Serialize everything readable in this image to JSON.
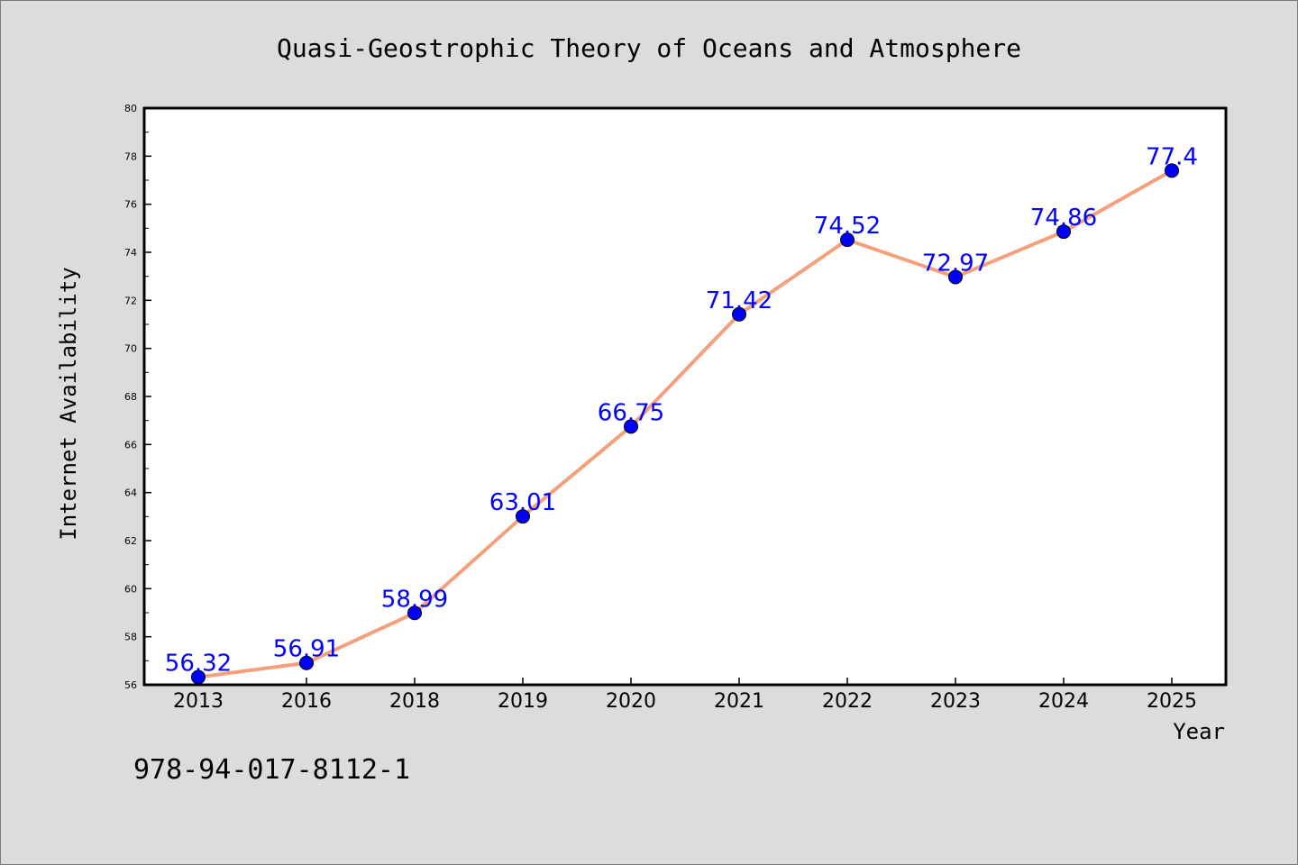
{
  "chart_data": {
    "type": "line",
    "title": "Quasi-Geostrophic Theory of Oceans and Atmosphere",
    "xlabel": "Year",
    "ylabel": "Internet Availability",
    "categories": [
      "2013",
      "2016",
      "2018",
      "2019",
      "2020",
      "2021",
      "2022",
      "2023",
      "2024",
      "2025"
    ],
    "series": [
      {
        "values": [
          56.32,
          56.91,
          58.99,
          63.01,
          66.75,
          71.42,
          74.52,
          72.97,
          74.86,
          77.4
        ],
        "line_color": "#f4a07c",
        "marker_color": "#0000ff",
        "label_color": "#0000ff"
      }
    ],
    "ylim": [
      56,
      80
    ],
    "yticks": [
      "56",
      "58",
      "60",
      "62",
      "64",
      "66",
      "68",
      "70",
      "72",
      "74",
      "76",
      "78",
      "80"
    ],
    "grid": false,
    "legend": "none"
  },
  "annotation": "978-94-017-8112-1"
}
